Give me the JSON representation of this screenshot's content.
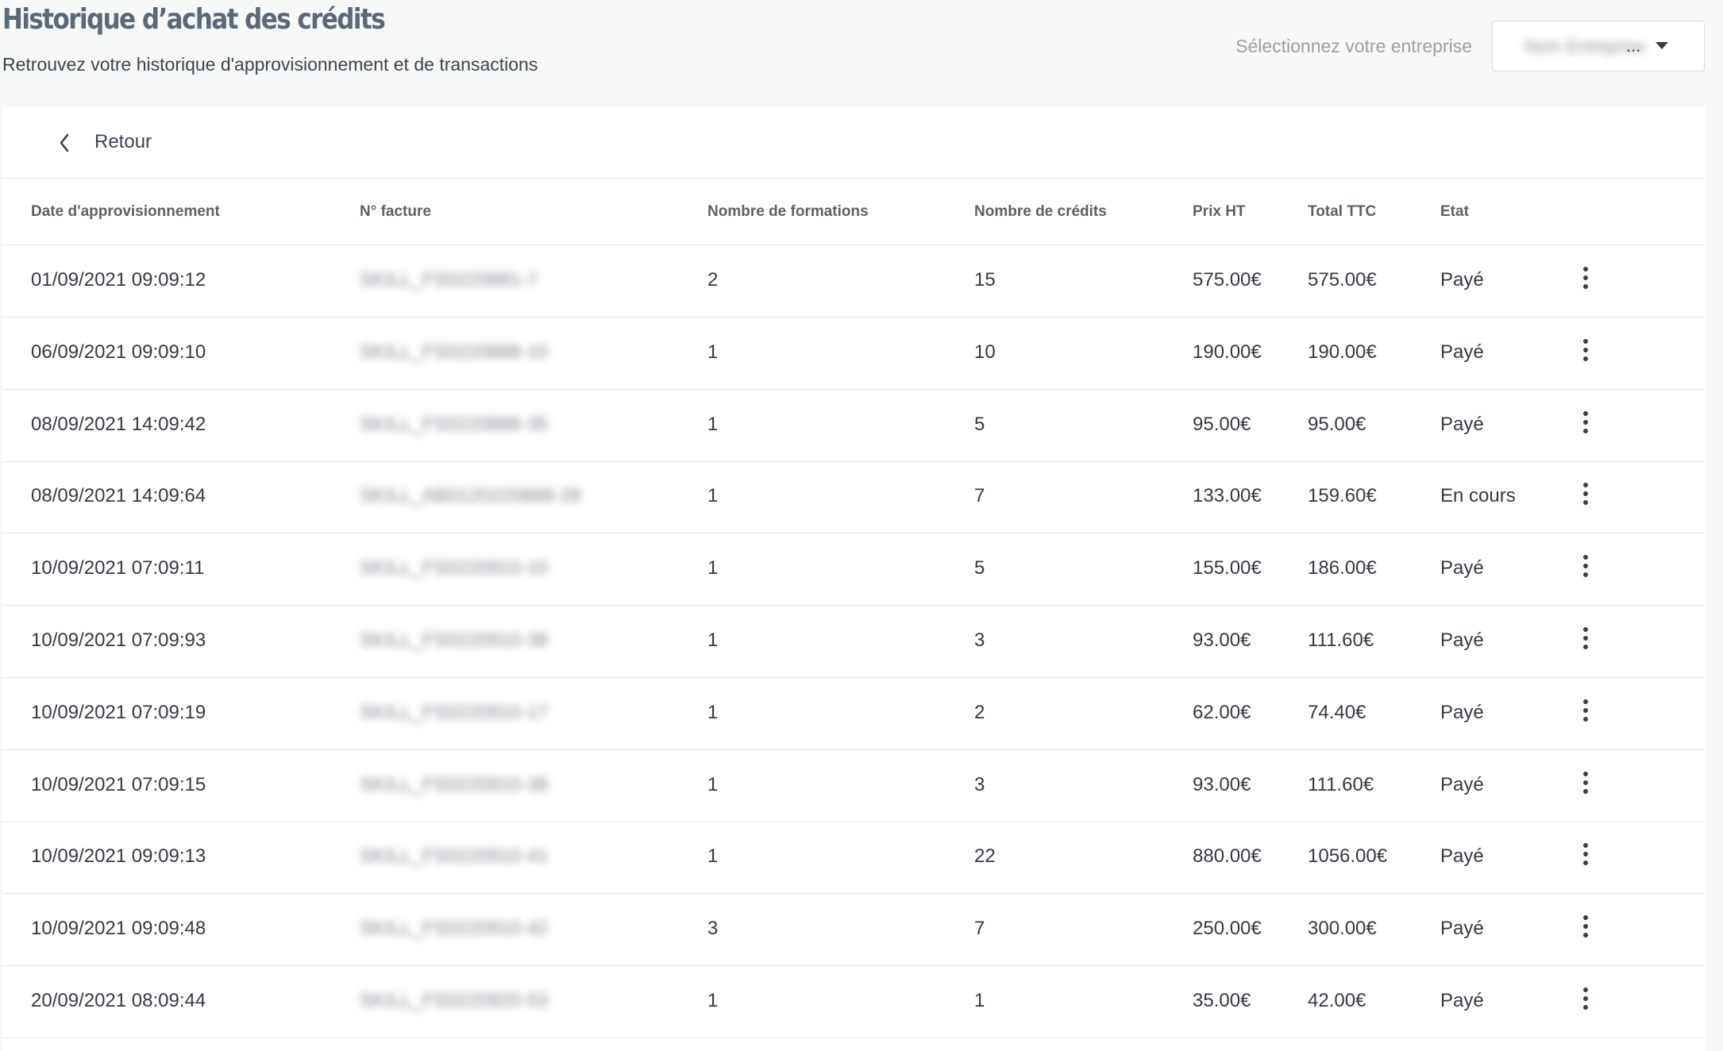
{
  "header": {
    "title": "Historique d’achat des crédits",
    "subtitle": "Retrouvez votre historique d'approvisionnement et de transactions",
    "company_label": "Sélectionnez votre entreprise",
    "company_value": "Nom Entreprise",
    "company_ellipsis": "..."
  },
  "nav": {
    "back_label": "Retour"
  },
  "table": {
    "columns": [
      "Date d'approvisionnement",
      "N° facture",
      "Nombre de formations",
      "Nombre de crédits",
      "Prix HT",
      "Total TTC",
      "Etat"
    ],
    "rows": [
      {
        "date": "01/09/2021 09:09:12",
        "invoice": "SKILL_FS0220881-7",
        "formations": "2",
        "credits": "15",
        "prix_ht": "575.00€",
        "total_ttc": "575.00€",
        "etat": "Payé"
      },
      {
        "date": "06/09/2021 09:09:10",
        "invoice": "SKILL_FS0220888-10",
        "formations": "1",
        "credits": "10",
        "prix_ht": "190.00€",
        "total_ttc": "190.00€",
        "etat": "Payé"
      },
      {
        "date": "08/09/2021 14:09:42",
        "invoice": "SKILL_FS0220888-35",
        "formations": "1",
        "credits": "5",
        "prix_ht": "95.00€",
        "total_ttc": "95.00€",
        "etat": "Payé"
      },
      {
        "date": "08/09/2021 14:09:64",
        "invoice": "SKILL_AB0120220888-28",
        "formations": "1",
        "credits": "7",
        "prix_ht": "133.00€",
        "total_ttc": "159.60€",
        "etat": "En cours"
      },
      {
        "date": "10/09/2021 07:09:11",
        "invoice": "SKILL_FS0220910-10",
        "formations": "1",
        "credits": "5",
        "prix_ht": "155.00€",
        "total_ttc": "186.00€",
        "etat": "Payé"
      },
      {
        "date": "10/09/2021 07:09:93",
        "invoice": "SKILL_FS0220910-38",
        "formations": "1",
        "credits": "3",
        "prix_ht": "93.00€",
        "total_ttc": "111.60€",
        "etat": "Payé"
      },
      {
        "date": "10/09/2021 07:09:19",
        "invoice": "SKILL_FS0220910-17",
        "formations": "1",
        "credits": "2",
        "prix_ht": "62.00€",
        "total_ttc": "74.40€",
        "etat": "Payé"
      },
      {
        "date": "10/09/2021 07:09:15",
        "invoice": "SKILL_FS0220910-38",
        "formations": "1",
        "credits": "3",
        "prix_ht": "93.00€",
        "total_ttc": "111.60€",
        "etat": "Payé"
      },
      {
        "date": "10/09/2021 09:09:13",
        "invoice": "SKILL_FS0220910-41",
        "formations": "1",
        "credits": "22",
        "prix_ht": "880.00€",
        "total_ttc": "1056.00€",
        "etat": "Payé"
      },
      {
        "date": "10/09/2021 09:09:48",
        "invoice": "SKILL_FS0220910-42",
        "formations": "3",
        "credits": "7",
        "prix_ht": "250.00€",
        "total_ttc": "300.00€",
        "etat": "Payé"
      },
      {
        "date": "20/09/2021 08:09:44",
        "invoice": "SKILL_FS0220920-53",
        "formations": "1",
        "credits": "1",
        "prix_ht": "35.00€",
        "total_ttc": "42.00€",
        "etat": "Payé"
      }
    ]
  },
  "icons": {
    "back": "chevron-left-icon",
    "row_menu": "more-vertical-icon",
    "dropdown": "caret-down-icon"
  },
  "colors": {
    "title": "#5a6878",
    "background": "#f7f8f8",
    "card": "#ffffff"
  }
}
